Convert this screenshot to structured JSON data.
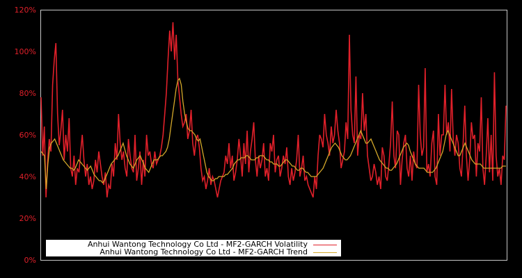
{
  "chart_data": {
    "type": "line",
    "title": "",
    "xlabel": "",
    "ylabel": "",
    "ylim": [
      0,
      120
    ],
    "yticks": [
      "0%",
      "20%",
      "40%",
      "60%",
      "80%",
      "100%",
      "120%"
    ],
    "grid": false,
    "legend_position": "lower left",
    "legend": [
      "Anhui Wantong Technology Co Ltd - MF2-GARCH Volatility",
      "Anhui Wantong Technology Co Ltd - MF2-GARCH Trend"
    ],
    "series": [
      {
        "name": "Anhui Wantong Technology Co Ltd - MF2-GARCH Volatility",
        "color": "#e0202a",
        "values": [
          78,
          50,
          64,
          30,
          48,
          58,
          52,
          84,
          96,
          104,
          70,
          55,
          62,
          72,
          48,
          60,
          52,
          68,
          44,
          40,
          50,
          36,
          44,
          42,
          52,
          60,
          48,
          40,
          46,
          36,
          40,
          34,
          38,
          48,
          42,
          52,
          46,
          40,
          36,
          42,
          30,
          36,
          34,
          46,
          40,
          56,
          48,
          70,
          56,
          48,
          52,
          44,
          40,
          58,
          50,
          44,
          42,
          60,
          38,
          44,
          52,
          36,
          48,
          40,
          60,
          50,
          52,
          46,
          44,
          52,
          46,
          48,
          50,
          54,
          60,
          70,
          80,
          96,
          110,
          100,
          114,
          96,
          108,
          86,
          78,
          70,
          64,
          66,
          70,
          58,
          62,
          72,
          56,
          50,
          58,
          60,
          54,
          44,
          38,
          40,
          34,
          38,
          44,
          36,
          40,
          38,
          34,
          30,
          34,
          38,
          40,
          42,
          50,
          46,
          56,
          44,
          50,
          38,
          42,
          48,
          58,
          50,
          40,
          56,
          46,
          62,
          42,
          52,
          58,
          66,
          48,
          40,
          50,
          44,
          48,
          56,
          40,
          44,
          38,
          56,
          52,
          60,
          42,
          48,
          50,
          40,
          44,
          50,
          46,
          54,
          40,
          36,
          44,
          38,
          42,
          48,
          60,
          40,
          44,
          50,
          38,
          40,
          36,
          34,
          32,
          30,
          40,
          34,
          50,
          60,
          58,
          54,
          70,
          60,
          56,
          50,
          64,
          56,
          60,
          72,
          62,
          56,
          44,
          48,
          52,
          66,
          58,
          108,
          72,
          60,
          56,
          88,
          50,
          60,
          58,
          80,
          62,
          70,
          50,
          44,
          38,
          40,
          46,
          42,
          36,
          40,
          34,
          54,
          50,
          40,
          38,
          46,
          56,
          76,
          50,
          44,
          62,
          60,
          36,
          48,
          56,
          60,
          44,
          40,
          50,
          38,
          52,
          46,
          44,
          84,
          60,
          50,
          54,
          92,
          42,
          46,
          40,
          56,
          62,
          40,
          36,
          70,
          50,
          60,
          60,
          84,
          60,
          66,
          52,
          82,
          58,
          50,
          60,
          56,
          44,
          40,
          56,
          74,
          50,
          38,
          48,
          66,
          58,
          60,
          40,
          56,
          52,
          78,
          44,
          36,
          50,
          68,
          42,
          60,
          38,
          90,
          50,
          40,
          44,
          36,
          50,
          48,
          74
        ]
      },
      {
        "name": "Anhui Wantong Technology Co Ltd - MF2-GARCH Trend",
        "color": "#d4a82a",
        "values": [
          52,
          51,
          50,
          34,
          46,
          54,
          56,
          57,
          58,
          56,
          54,
          52,
          50,
          48,
          47,
          46,
          45,
          44,
          44,
          43,
          44,
          46,
          48,
          47,
          46,
          45,
          44,
          43,
          44,
          45,
          43,
          41,
          40,
          39,
          38,
          38,
          37,
          38,
          40,
          42,
          44,
          46,
          47,
          48,
          49,
          50,
          52,
          54,
          56,
          53,
          50,
          48,
          46,
          45,
          44,
          46,
          48,
          49,
          50,
          48,
          46,
          44,
          43,
          42,
          44,
          46,
          48,
          48,
          48,
          49,
          50,
          50,
          51,
          52,
          54,
          58,
          64,
          70,
          76,
          82,
          86,
          87,
          84,
          76,
          70,
          66,
          63,
          62,
          62,
          61,
          60,
          58,
          57,
          58,
          54,
          50,
          46,
          42,
          40,
          39,
          38,
          38,
          39,
          39,
          40,
          40,
          40,
          40,
          41,
          41,
          42,
          43,
          44,
          46,
          47,
          48,
          48,
          49,
          49,
          49,
          50,
          50,
          49,
          48,
          48,
          48,
          49,
          49,
          50,
          50,
          50,
          49,
          48,
          48,
          47,
          47,
          46,
          46,
          46,
          45,
          45,
          46,
          47,
          48,
          48,
          47,
          46,
          45,
          45,
          44,
          43,
          43,
          44,
          44,
          43,
          42,
          42,
          41,
          40,
          40,
          40,
          40,
          41,
          42,
          43,
          44,
          46,
          48,
          50,
          52,
          54,
          55,
          56,
          55,
          54,
          52,
          50,
          49,
          48,
          48,
          49,
          50,
          52,
          54,
          56,
          58,
          60,
          62,
          60,
          58,
          56,
          56,
          57,
          58,
          56,
          54,
          52,
          50,
          48,
          47,
          46,
          45,
          44,
          44,
          43,
          43,
          44,
          45,
          46,
          48,
          50,
          52,
          54,
          55,
          56,
          55,
          52,
          50,
          48,
          46,
          45,
          44,
          44,
          44,
          44,
          43,
          42,
          42,
          42,
          42,
          43,
          44,
          46,
          48,
          50,
          52,
          56,
          60,
          62,
          60,
          58,
          56,
          54,
          52,
          50,
          50,
          52,
          54,
          56,
          54,
          52,
          50,
          48,
          47,
          46,
          46,
          46,
          46,
          45,
          44,
          44,
          44,
          44,
          44,
          44,
          44,
          44,
          44,
          44,
          44,
          45,
          45,
          45
        ]
      }
    ]
  },
  "axis": {
    "y_ticks": [
      "120%",
      "100%",
      "80%",
      "60%",
      "40%",
      "20%",
      "0%"
    ]
  },
  "legend": {
    "volatility_label": "Anhui Wantong Technology Co Ltd - MF2-GARCH Volatility",
    "trend_label": "Anhui Wantong Technology Co Ltd - MF2-GARCH Trend",
    "volatility_color": "#e0202a",
    "trend_color": "#d4a82a"
  }
}
